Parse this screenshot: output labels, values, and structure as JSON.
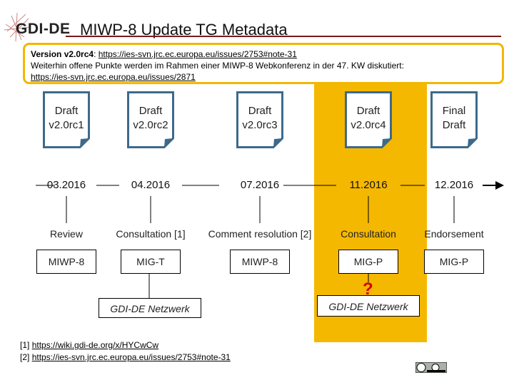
{
  "logo": {
    "text": "GDI-DE"
  },
  "title": "MIWP-8 Update TG Metadata",
  "callout": {
    "version_label": "Version v2.0rc4",
    "version_sep": ": ",
    "version_link": "https://ies-svn.jrc.ec.europa.eu/issues/2753#note-31",
    "line2": "Weiterhin offene Punkte werden im Rahmen einer MIWP-8 Webkonferenz in der 47. KW diskutiert:",
    "line3_link": "https://ies-svn.jrc.ec.europa.eu/issues/2871"
  },
  "milestones": [
    {
      "doc_line1": "Draft",
      "doc_line2": "v2.0rc1",
      "date": "03.2016",
      "phase": "Review",
      "group": "MIWP-8"
    },
    {
      "doc_line1": "Draft",
      "doc_line2": "v2.0rc2",
      "date": "04.2016",
      "phase": "Consultation [1]",
      "group": "MIG-T"
    },
    {
      "doc_line1": "Draft",
      "doc_line2": "v2.0rc3",
      "date": "07.2016",
      "phase": "Comment resolution [2]",
      "group": "MIWP-8"
    },
    {
      "doc_line1": "Draft",
      "doc_line2": "v2.0rc4",
      "date": "11.2016",
      "phase": "Consultation",
      "group": "MIG-P"
    },
    {
      "doc_line1": "Final",
      "doc_line2": "Draft",
      "date": "12.2016",
      "phase": "Endorsement",
      "group": "MIG-P"
    }
  ],
  "networks": [
    {
      "label": "GDI-DE Netzwerk"
    },
    {
      "label": "GDI-DE Netzwerk"
    }
  ],
  "question_mark": "?",
  "footnotes": [
    {
      "ref": "[1] ",
      "link": "https://wiki.gdi-de.org/x/HYCwCw"
    },
    {
      "ref": "[2] ",
      "link": "https://ies-svn.jrc.ec.europa.eu/issues/2753#note-31"
    }
  ],
  "license_icon": "cc-by-icon",
  "colors": {
    "highlight": "#f5b800",
    "title_rule": "#7a1a1a",
    "doc_border": "#3d6a8c",
    "question": "#d40000"
  }
}
